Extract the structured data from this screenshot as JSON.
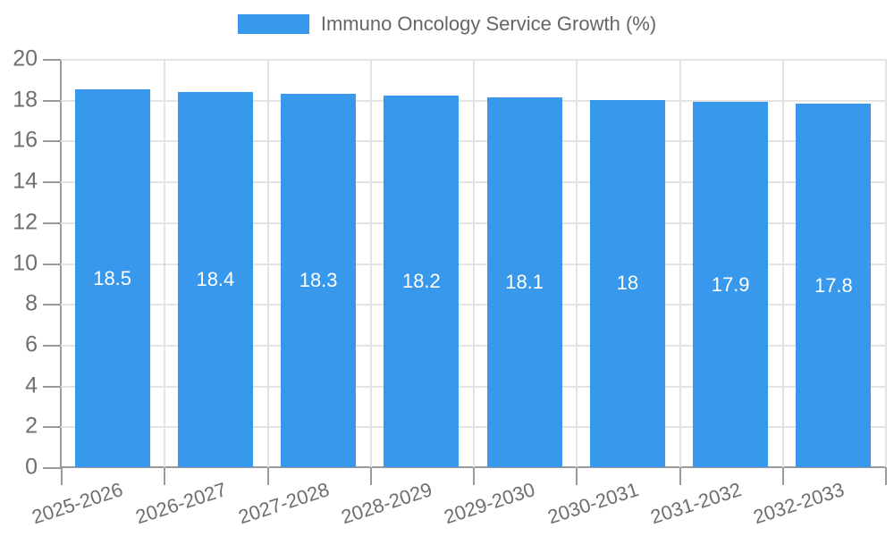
{
  "chart_data": {
    "type": "bar",
    "title": "Immuno Oncology Service Growth (%)",
    "categories": [
      "2025-2026",
      "2026-2027",
      "2027-2028",
      "2028-2029",
      "2029-2030",
      "2030-2031",
      "2031-2032",
      "2032-2033"
    ],
    "values": [
      18.5,
      18.4,
      18.3,
      18.2,
      18.1,
      18,
      17.9,
      17.8
    ],
    "value_labels": [
      "18.5",
      "18.4",
      "18.3",
      "18.2",
      "18.1",
      "18",
      "17.9",
      "17.8"
    ],
    "xlabel": "",
    "ylabel": "",
    "ylim": [
      0,
      20
    ],
    "ytick_step": 2,
    "grid": true,
    "legend_position": "top",
    "colors": {
      "bar": "#3899ec",
      "bar_value_text": "#ffffff",
      "grid_line": "#e3e3e3",
      "axis_line": "#9a9a9a",
      "tick_label": "#6e6e6e",
      "legend_text": "#666666"
    }
  }
}
